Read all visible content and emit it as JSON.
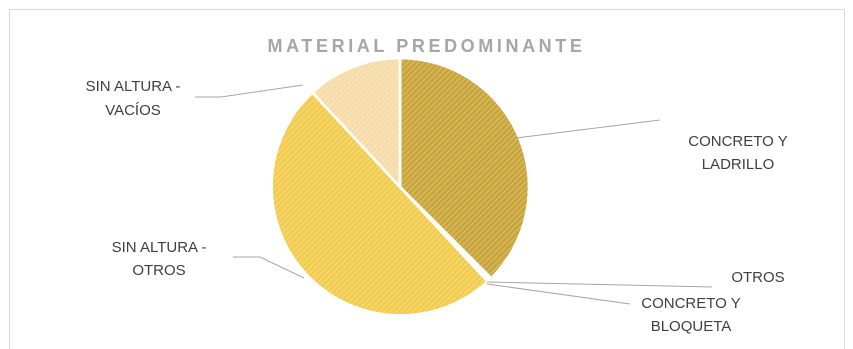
{
  "chart_data": {
    "type": "pie",
    "title": "MATERIAL PREDOMINANTE",
    "slices": [
      {
        "label_lines": [
          "CONCRETO Y",
          "LADRILLO"
        ],
        "value": 37.5,
        "color": "#c9a53a"
      },
      {
        "label_lines": [
          "OTROS"
        ],
        "value": 0.3,
        "color": "#d9b446"
      },
      {
        "label_lines": [
          "CONCRETO Y",
          "BLOQUETA"
        ],
        "value": 0.3,
        "color": "#e3bc55"
      },
      {
        "label_lines": [
          "SIN ALTURA -",
          "OTROS"
        ],
        "value": 50.0,
        "color": "#f2cc4e"
      },
      {
        "label_lines": [
          "SIN ALTURA -",
          "VACÍOS"
        ],
        "value": 11.9,
        "color": "#f5dca8"
      }
    ],
    "legend": "none"
  }
}
